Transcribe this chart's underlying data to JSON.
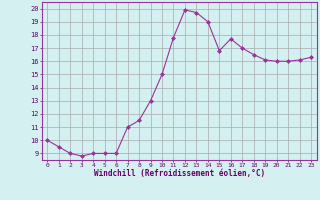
{
  "x": [
    0,
    1,
    2,
    3,
    4,
    5,
    6,
    7,
    8,
    9,
    10,
    11,
    12,
    13,
    14,
    15,
    16,
    17,
    18,
    19,
    20,
    21,
    22,
    23
  ],
  "y": [
    10,
    9.5,
    9.0,
    8.8,
    9.0,
    9.0,
    9.0,
    11.0,
    11.5,
    13.0,
    15.0,
    17.8,
    19.9,
    19.7,
    19.0,
    16.8,
    17.7,
    17.0,
    16.5,
    16.1,
    16.0,
    16.0,
    16.1,
    16.3
  ],
  "line_color": "#993399",
  "marker": "D",
  "marker_size": 2.0,
  "bg_color": "#d4f0f0",
  "grid_color": "#aaaaaa",
  "xlabel": "Windchill (Refroidissement éolien,°C)",
  "ylabel_ticks": [
    9,
    10,
    11,
    12,
    13,
    14,
    15,
    16,
    17,
    18,
    19,
    20
  ],
  "xlim": [
    -0.5,
    23.5
  ],
  "ylim": [
    8.5,
    20.5
  ]
}
